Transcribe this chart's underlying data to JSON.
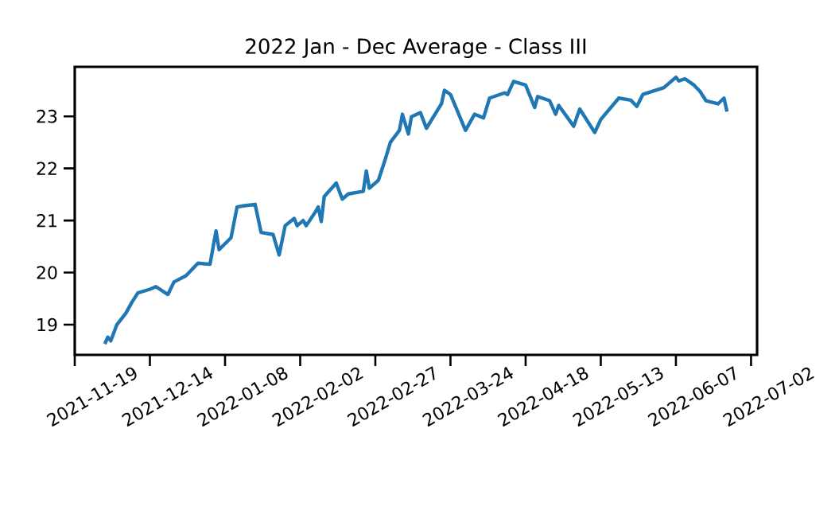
{
  "chart_data": {
    "type": "line",
    "title": "2022 Jan - Dec Average - Class III",
    "x": [
      "2021-11-29",
      "2021-11-30",
      "2021-12-01",
      "2021-12-03",
      "2021-12-06",
      "2021-12-08",
      "2021-12-10",
      "2021-12-14",
      "2021-12-16",
      "2021-12-20",
      "2021-12-22",
      "2021-12-26",
      "2021-12-30",
      "2022-01-03",
      "2022-01-05",
      "2022-01-06",
      "2022-01-10",
      "2022-01-12",
      "2022-01-14",
      "2022-01-18",
      "2022-01-20",
      "2022-01-24",
      "2022-01-26",
      "2022-01-28",
      "2022-01-31",
      "2022-02-01",
      "2022-02-03",
      "2022-02-04",
      "2022-02-07",
      "2022-02-08",
      "2022-02-09",
      "2022-02-10",
      "2022-02-14",
      "2022-02-16",
      "2022-02-18",
      "2022-02-23",
      "2022-02-24",
      "2022-02-25",
      "2022-02-28",
      "2022-03-02",
      "2022-03-04",
      "2022-03-07",
      "2022-03-08",
      "2022-03-10",
      "2022-03-11",
      "2022-03-14",
      "2022-03-16",
      "2022-03-21",
      "2022-03-22",
      "2022-03-24",
      "2022-03-29",
      "2022-04-01",
      "2022-04-04",
      "2022-04-06",
      "2022-04-11",
      "2022-04-12",
      "2022-04-14",
      "2022-04-18",
      "2022-04-21",
      "2022-04-22",
      "2022-04-26",
      "2022-04-28",
      "2022-04-29",
      "2022-05-04",
      "2022-05-06",
      "2022-05-11",
      "2022-05-13",
      "2022-05-19",
      "2022-05-23",
      "2022-05-25",
      "2022-05-27",
      "2022-06-03",
      "2022-06-07",
      "2022-06-08",
      "2022-06-10",
      "2022-06-13",
      "2022-06-15",
      "2022-06-17",
      "2022-06-21",
      "2022-06-23",
      "2022-06-24"
    ],
    "series": [
      {
        "color": "#1f77b4",
        "values": [
          18.63,
          18.76,
          18.69,
          19.0,
          19.22,
          19.43,
          19.61,
          19.68,
          19.73,
          19.58,
          19.82,
          19.94,
          20.18,
          20.16,
          20.8,
          20.44,
          20.67,
          21.26,
          21.28,
          21.31,
          20.77,
          20.73,
          20.34,
          20.9,
          21.04,
          20.9,
          21.0,
          20.9,
          21.16,
          21.26,
          20.98,
          21.46,
          21.72,
          21.41,
          21.51,
          21.56,
          21.95,
          21.62,
          21.77,
          22.12,
          22.5,
          22.73,
          23.04,
          22.66,
          22.99,
          23.07,
          22.77,
          23.24,
          23.5,
          23.42,
          22.73,
          23.04,
          22.97,
          23.35,
          23.45,
          23.42,
          23.67,
          23.6,
          23.17,
          23.38,
          23.3,
          23.04,
          23.21,
          22.81,
          23.14,
          22.69,
          22.94,
          23.35,
          23.31,
          23.19,
          23.42,
          23.55,
          23.75,
          23.68,
          23.72,
          23.6,
          23.48,
          23.3,
          23.24,
          23.35,
          23.09
        ]
      }
    ],
    "xlim": [
      "2021-11-19",
      "2022-07-04"
    ],
    "xticks": [
      "2021-11-19",
      "2021-12-14",
      "2022-01-08",
      "2022-02-02",
      "2022-02-27",
      "2022-03-24",
      "2022-04-18",
      "2022-05-13",
      "2022-06-07",
      "2022-07-02"
    ],
    "ylim": [
      18.42,
      23.95
    ],
    "yticks": [
      19,
      20,
      21,
      22,
      23
    ],
    "grid": false,
    "marker": "none",
    "line_style": "solid"
  }
}
